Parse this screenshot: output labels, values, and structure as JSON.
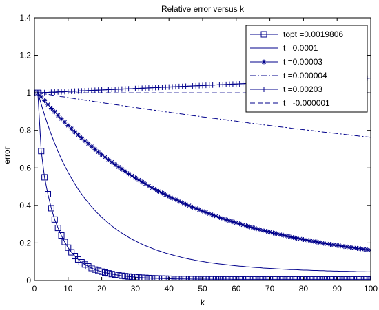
{
  "chart_data": {
    "type": "line",
    "title": "Relative error versus k",
    "xlabel": "k",
    "ylabel": "error",
    "xlim": [
      0,
      100
    ],
    "ylim": [
      0,
      1.4
    ],
    "xticks": [
      "0",
      "10",
      "20",
      "30",
      "40",
      "50",
      "60",
      "70",
      "80",
      "90",
      "100"
    ],
    "yticks": [
      "0",
      "0.2",
      "0.4",
      "0.6",
      "0.8",
      "1",
      "1.2",
      "1.4"
    ],
    "grid": false,
    "legend_position": "top-right",
    "line_color": "#00008b",
    "x": [
      1,
      2,
      3,
      4,
      5,
      6,
      7,
      8,
      9,
      10,
      11,
      12,
      13,
      14,
      15,
      16,
      17,
      18,
      19,
      20,
      21,
      22,
      23,
      24,
      25,
      26,
      27,
      28,
      29,
      30,
      31,
      32,
      33,
      34,
      35,
      36,
      37,
      38,
      39,
      40,
      41,
      42,
      43,
      44,
      45,
      46,
      47,
      48,
      49,
      50,
      51,
      52,
      53,
      54,
      55,
      56,
      57,
      58,
      59,
      60,
      61,
      62,
      63,
      64,
      65,
      66,
      67,
      68,
      69,
      70,
      71,
      72,
      73,
      74,
      75,
      76,
      77,
      78,
      79,
      80,
      81,
      82,
      83,
      84,
      85,
      86,
      87,
      88,
      89,
      90,
      91,
      92,
      93,
      94,
      95,
      96,
      97,
      98,
      99,
      100
    ],
    "series": [
      {
        "name": "topt =0.0019806",
        "marker": "square",
        "dash": "solid",
        "values": [
          1.0,
          0.69,
          0.55,
          0.46,
          0.385,
          0.325,
          0.28,
          0.24,
          0.205,
          0.175,
          0.15,
          0.13,
          0.112,
          0.097,
          0.085,
          0.075,
          0.066,
          0.058,
          0.052,
          0.047,
          0.042,
          0.038,
          0.034,
          0.031,
          0.028,
          0.025,
          0.023,
          0.021,
          0.019,
          0.018,
          0.016,
          0.015,
          0.014,
          0.013,
          0.012,
          0.0115,
          0.011,
          0.0105,
          0.01,
          0.0095,
          0.009,
          0.0085,
          0.0082,
          0.008,
          0.0078,
          0.0076,
          0.0074,
          0.0072,
          0.007,
          0.0069,
          0.0068,
          0.0067,
          0.0066,
          0.0065,
          0.0064,
          0.0063,
          0.0062,
          0.0061,
          0.006,
          0.006,
          0.006,
          0.006,
          0.006,
          0.006,
          0.006,
          0.006,
          0.006,
          0.006,
          0.006,
          0.006,
          0.006,
          0.006,
          0.006,
          0.006,
          0.006,
          0.006,
          0.006,
          0.006,
          0.006,
          0.006,
          0.006,
          0.006,
          0.006,
          0.006,
          0.006,
          0.006,
          0.006,
          0.006,
          0.006,
          0.006,
          0.006,
          0.006,
          0.006,
          0.006,
          0.006,
          0.006,
          0.006,
          0.006,
          0.006,
          0.006
        ]
      },
      {
        "name": "t =0.0001",
        "marker": "none",
        "dash": "solid",
        "values": [
          1.0,
          0.94,
          0.882,
          0.828,
          0.778,
          0.731,
          0.688,
          0.648,
          0.611,
          0.577,
          0.545,
          0.515,
          0.487,
          0.461,
          0.437,
          0.414,
          0.393,
          0.373,
          0.354,
          0.337,
          0.321,
          0.305,
          0.291,
          0.277,
          0.264,
          0.252,
          0.241,
          0.23,
          0.22,
          0.211,
          0.202,
          0.193,
          0.185,
          0.178,
          0.171,
          0.164,
          0.158,
          0.152,
          0.146,
          0.141,
          0.136,
          0.131,
          0.127,
          0.122,
          0.118,
          0.114,
          0.111,
          0.107,
          0.104,
          0.101,
          0.098,
          0.095,
          0.093,
          0.09,
          0.088,
          0.086,
          0.084,
          0.082,
          0.08,
          0.078,
          0.076,
          0.075,
          0.073,
          0.072,
          0.07,
          0.069,
          0.068,
          0.066,
          0.065,
          0.064,
          0.063,
          0.062,
          0.061,
          0.06,
          0.059,
          0.058,
          0.058,
          0.057,
          0.056,
          0.055,
          0.055,
          0.054,
          0.053,
          0.053,
          0.052,
          0.052,
          0.051,
          0.051,
          0.05,
          0.05,
          0.049,
          0.049,
          0.049,
          0.048,
          0.048,
          0.047,
          0.047,
          0.047,
          0.046,
          0.046
        ]
      },
      {
        "name": "t =0.00003",
        "marker": "asterisk",
        "dash": "solid",
        "values": [
          1.0,
          0.979,
          0.958,
          0.938,
          0.918,
          0.899,
          0.88,
          0.862,
          0.844,
          0.826,
          0.809,
          0.792,
          0.776,
          0.76,
          0.744,
          0.729,
          0.714,
          0.699,
          0.685,
          0.671,
          0.657,
          0.644,
          0.631,
          0.618,
          0.605,
          0.593,
          0.581,
          0.569,
          0.558,
          0.547,
          0.536,
          0.525,
          0.515,
          0.504,
          0.494,
          0.485,
          0.475,
          0.466,
          0.457,
          0.448,
          0.439,
          0.431,
          0.422,
          0.414,
          0.406,
          0.399,
          0.391,
          0.384,
          0.377,
          0.369,
          0.363,
          0.356,
          0.349,
          0.343,
          0.336,
          0.33,
          0.324,
          0.318,
          0.313,
          0.307,
          0.302,
          0.296,
          0.291,
          0.286,
          0.281,
          0.276,
          0.271,
          0.267,
          0.262,
          0.258,
          0.253,
          0.249,
          0.245,
          0.241,
          0.237,
          0.233,
          0.229,
          0.225,
          0.222,
          0.218,
          0.215,
          0.211,
          0.208,
          0.205,
          0.202,
          0.198,
          0.195,
          0.192,
          0.19,
          0.187,
          0.184,
          0.181,
          0.179,
          0.176,
          0.174,
          0.171,
          0.169,
          0.166,
          0.164,
          0.162
        ]
      },
      {
        "name": "t =0.000004",
        "marker": "none",
        "dash": "dashdot",
        "values": [
          1.0,
          0.997,
          0.994,
          0.992,
          0.989,
          0.986,
          0.983,
          0.98,
          0.978,
          0.975,
          0.972,
          0.969,
          0.967,
          0.964,
          0.961,
          0.959,
          0.956,
          0.953,
          0.951,
          0.948,
          0.945,
          0.943,
          0.94,
          0.937,
          0.935,
          0.932,
          0.93,
          0.927,
          0.924,
          0.922,
          0.919,
          0.917,
          0.914,
          0.912,
          0.909,
          0.907,
          0.904,
          0.902,
          0.899,
          0.897,
          0.894,
          0.892,
          0.889,
          0.887,
          0.884,
          0.882,
          0.879,
          0.877,
          0.875,
          0.872,
          0.87,
          0.867,
          0.865,
          0.863,
          0.86,
          0.858,
          0.856,
          0.853,
          0.851,
          0.849,
          0.846,
          0.844,
          0.842,
          0.839,
          0.837,
          0.835,
          0.833,
          0.83,
          0.828,
          0.826,
          0.824,
          0.821,
          0.819,
          0.817,
          0.815,
          0.813,
          0.81,
          0.808,
          0.806,
          0.804,
          0.802,
          0.8,
          0.798,
          0.795,
          0.793,
          0.791,
          0.789,
          0.787,
          0.785,
          0.783,
          0.781,
          0.779,
          0.777,
          0.775,
          0.773,
          0.771,
          0.769,
          0.767,
          0.765,
          0.763
        ]
      },
      {
        "name": "t =0.00203",
        "marker": "plus",
        "dash": "solid",
        "values": [
          1.0,
          1.0008,
          1.0016,
          1.0025,
          1.0033,
          1.0041,
          1.0049,
          1.0057,
          1.0065,
          1.0074,
          1.0082,
          1.009,
          1.0098,
          1.0106,
          1.0114,
          1.0122,
          1.013,
          1.0138,
          1.0146,
          1.0154,
          1.0162,
          1.017,
          1.0178,
          1.0186,
          1.0194,
          1.0202,
          1.021,
          1.0218,
          1.0226,
          1.0234,
          1.0242,
          1.025,
          1.0258,
          1.0266,
          1.0274,
          1.0282,
          1.029,
          1.0298,
          1.0306,
          1.0314,
          1.0322,
          1.033,
          1.0338,
          1.0346,
          1.0354,
          1.0362,
          1.037,
          1.0378,
          1.0386,
          1.0394,
          1.0402,
          1.041,
          1.0418,
          1.0426,
          1.0434,
          1.0442,
          1.045,
          1.0458,
          1.0466,
          1.0474,
          1.0482,
          1.049,
          1.0498,
          1.0506,
          1.0514,
          1.0522,
          1.053,
          1.0538,
          1.0546,
          1.0554,
          1.0562,
          1.057,
          1.0578,
          1.0586,
          1.0594,
          1.0602,
          1.061,
          1.0618,
          1.0626,
          1.0634,
          1.0642,
          1.065,
          1.0658,
          1.0666,
          1.0674,
          1.0682,
          1.069,
          1.0698,
          1.0706,
          1.0714,
          1.0722,
          1.073,
          1.0738,
          1.0746,
          1.0754,
          1.0762,
          1.077,
          1.0778,
          1.0786,
          1.0794
        ]
      },
      {
        "name": "t =-0.000001",
        "marker": "none",
        "dash": "dashed",
        "values": [
          1.0,
          1.0,
          1.0,
          1.0,
          1.0,
          1.0,
          1.0,
          1.0,
          1.0,
          1.0,
          1.0,
          1.0,
          1.0,
          1.0,
          1.0,
          1.0,
          1.0,
          1.0,
          1.0,
          1.0,
          1.0,
          1.0,
          1.0,
          1.0,
          1.0,
          1.0,
          1.0,
          1.0,
          1.0,
          1.0,
          1.0,
          1.0,
          1.0,
          1.0,
          1.0,
          1.0,
          1.0,
          1.0,
          1.0,
          1.0,
          1.0,
          1.0,
          1.0,
          1.0,
          1.0,
          1.0,
          1.0,
          1.0,
          1.0,
          1.0,
          1.0,
          1.0,
          1.0,
          1.0,
          1.0,
          1.0,
          1.0,
          1.0,
          1.0,
          1.0,
          1.0,
          1.0,
          1.0,
          1.0,
          1.0,
          1.0,
          1.0,
          1.0,
          1.0,
          1.0,
          1.0,
          1.0,
          1.0,
          1.0,
          1.0,
          1.0,
          1.0,
          1.0,
          1.0,
          1.0,
          1.0,
          1.0,
          1.0,
          1.0,
          1.0,
          1.0,
          1.0,
          1.0,
          1.0,
          1.0,
          1.0,
          1.0,
          1.0,
          1.0,
          1.0,
          1.0,
          1.0,
          1.0,
          1.0,
          1.0
        ]
      }
    ]
  }
}
